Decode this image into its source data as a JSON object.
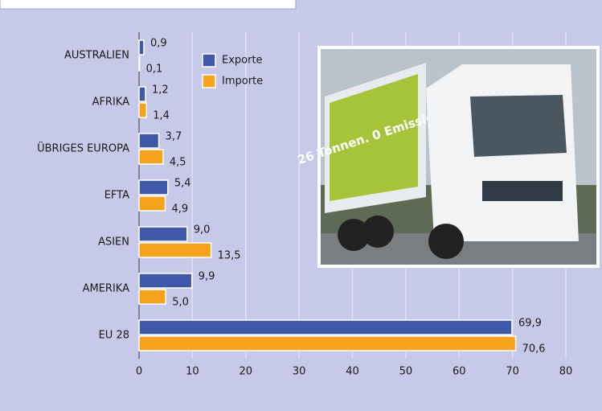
{
  "chart_data": {
    "type": "barh",
    "categories": [
      "AUSTRALIEN",
      "AFRIKA",
      "ÜBRIGES EUROPA",
      "EFTA",
      "ASIEN",
      "AMERIKA",
      "EU 28"
    ],
    "series": [
      {
        "name": "Exporte",
        "color": "#3f58a8",
        "values": [
          0.9,
          1.2,
          3.7,
          5.4,
          9.0,
          9.9,
          69.9
        ],
        "value_labels": [
          "0,9",
          "1,2",
          "3,7",
          "5,4",
          "9,0",
          "9,9",
          "69,9"
        ]
      },
      {
        "name": "Importe",
        "color": "#f7a21b",
        "values": [
          0.1,
          1.4,
          4.5,
          4.9,
          13.5,
          5.0,
          70.6
        ],
        "value_labels": [
          "0,1",
          "1,4",
          "4,5",
          "4,9",
          "13,5",
          "5,0",
          "70,6"
        ]
      }
    ],
    "xlim": [
      0,
      80
    ],
    "xticks": [
      0,
      10,
      20,
      30,
      40,
      50,
      60,
      70,
      80
    ],
    "grid": true,
    "legend": "top-left",
    "annotation": "26 Tonnen. 0 Emission."
  }
}
